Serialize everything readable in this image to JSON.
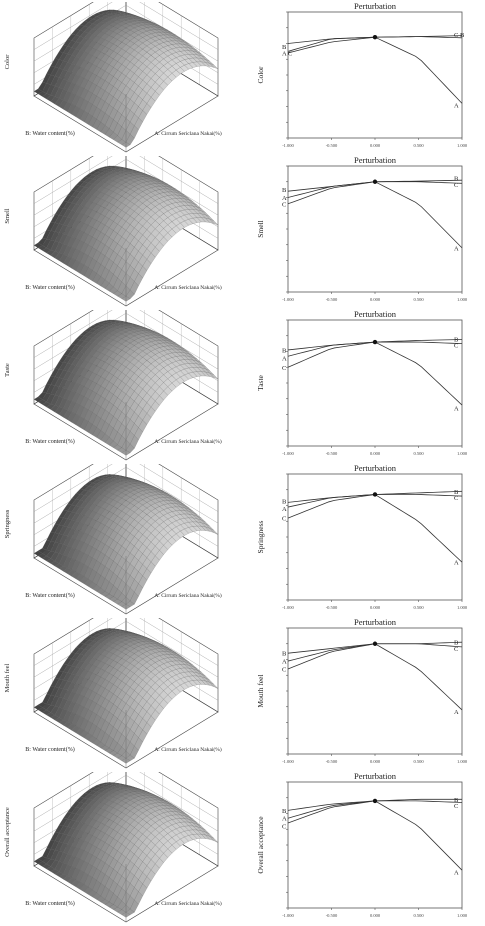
{
  "chart_data": [
    {
      "type": "surface3d",
      "zlabel": "Color",
      "xlabel": "B: Water content(%)",
      "ylabel": "A: Cirrum Sericlana Nakai(%)",
      "surface": {
        "A_vertex": 8.0,
        "B_vertex": 0.0,
        "peak": 8.2,
        "curv_A": 1.2,
        "curv_B": 0.4
      }
    },
    {
      "type": "line",
      "title": "Perturbation",
      "ylabel": "Color",
      "x": [
        -1.0,
        -0.5,
        0.0,
        0.5,
        1.0
      ],
      "xticks": [
        "-1.000",
        "-0.500",
        "0.000",
        "0.500",
        "1.000"
      ],
      "ylim": [
        5.0,
        9.0
      ],
      "series": [
        {
          "name": "A",
          "values": [
            7.75,
            8.15,
            8.2,
            7.55,
            6.1
          ]
        },
        {
          "name": "B",
          "values": [
            8.0,
            8.15,
            8.2,
            8.22,
            8.25
          ]
        },
        {
          "name": "C",
          "values": [
            7.7,
            8.05,
            8.2,
            8.22,
            8.18
          ]
        }
      ],
      "labels_left": [
        {
          "name": "B",
          "y": 7.9
        },
        {
          "name": "A C",
          "y": 7.7
        }
      ],
      "labels_right": [
        {
          "name": "C B",
          "y": 8.28
        },
        {
          "name": "A",
          "y": 6.05
        }
      ]
    },
    {
      "type": "surface3d",
      "zlabel": "Smell",
      "xlabel": "B: Water content(%)",
      "ylabel": "A: Cirrum Sericlana Nakai(%)",
      "surface": {
        "A_vertex": 8.5,
        "B_vertex": 0.0,
        "peak": 8.6,
        "curv_A": 1.2,
        "curv_B": 0.5
      }
    },
    {
      "type": "line",
      "title": "Perturbation",
      "ylabel": "Smell",
      "x": [
        -1.0,
        -0.5,
        0.0,
        0.5,
        1.0
      ],
      "xticks": [
        "-1.000",
        "-0.500",
        "0.000",
        "0.500",
        "1.000"
      ],
      "ylim": [
        5.0,
        9.0
      ],
      "series": [
        {
          "name": "A",
          "values": [
            7.8,
            8.3,
            8.5,
            7.8,
            6.4
          ]
        },
        {
          "name": "B",
          "values": [
            8.2,
            8.35,
            8.5,
            8.52,
            8.55
          ]
        },
        {
          "name": "C",
          "values": [
            8.0,
            8.35,
            8.5,
            8.5,
            8.45
          ]
        }
      ],
      "labels_left": [
        {
          "name": "B",
          "y": 8.25
        },
        {
          "name": "A",
          "y": 8.0
        },
        {
          "name": "C",
          "y": 7.8
        }
      ],
      "labels_right": [
        {
          "name": "B",
          "y": 8.62
        },
        {
          "name": "C",
          "y": 8.42
        },
        {
          "name": "A",
          "y": 6.4
        }
      ]
    },
    {
      "type": "surface3d",
      "zlabel": "Taste",
      "xlabel": "B: Water content(%)",
      "ylabel": "A: Cirrum Sericlana Nakai(%)",
      "surface": {
        "A_vertex": 8.3,
        "B_vertex": 0.0,
        "peak": 8.4,
        "curv_A": 1.2,
        "curv_B": 0.5
      }
    },
    {
      "type": "line",
      "title": "Perturbation",
      "ylabel": "Taste",
      "x": [
        -1.0,
        -0.5,
        0.0,
        0.5,
        1.0
      ],
      "xticks": [
        "-1.000",
        "-0.500",
        "0.000",
        "0.500",
        "1.000"
      ],
      "ylim": [
        5.0,
        9.0
      ],
      "series": [
        {
          "name": "A",
          "values": [
            7.5,
            8.1,
            8.3,
            7.6,
            6.3
          ]
        },
        {
          "name": "B",
          "values": [
            8.05,
            8.2,
            8.3,
            8.35,
            8.38
          ]
        },
        {
          "name": "C",
          "values": [
            7.85,
            8.2,
            8.3,
            8.3,
            8.25
          ]
        }
      ],
      "labels_left": [
        {
          "name": "B",
          "y": 8.05
        },
        {
          "name": "A",
          "y": 7.8
        },
        {
          "name": "C",
          "y": 7.5
        }
      ],
      "labels_right": [
        {
          "name": "B",
          "y": 8.4
        },
        {
          "name": "C",
          "y": 8.2
        },
        {
          "name": "A",
          "y": 6.2
        }
      ]
    },
    {
      "type": "surface3d",
      "zlabel": "Springness",
      "xlabel": "B: Water content(%)",
      "ylabel": "A: Cirrum Sericlana Nakai(%)",
      "surface": {
        "A_vertex": 8.3,
        "B_vertex": 0.0,
        "peak": 8.4,
        "curv_A": 1.3,
        "curv_B": 0.5
      }
    },
    {
      "type": "line",
      "title": "Perturbation",
      "ylabel": "Springness",
      "x": [
        -1.0,
        -0.5,
        0.0,
        0.5,
        1.0
      ],
      "xticks": [
        "-1.000",
        "-0.500",
        "0.000",
        "0.500",
        "1.000"
      ],
      "ylim": [
        5.0,
        9.0
      ],
      "series": [
        {
          "name": "A",
          "values": [
            7.6,
            8.15,
            8.35,
            7.5,
            6.2
          ]
        },
        {
          "name": "B",
          "values": [
            8.1,
            8.25,
            8.35,
            8.4,
            8.45
          ]
        },
        {
          "name": "C",
          "values": [
            7.95,
            8.25,
            8.35,
            8.35,
            8.3
          ]
        }
      ],
      "labels_left": [
        {
          "name": "B",
          "y": 8.15
        },
        {
          "name": "A",
          "y": 7.9
        },
        {
          "name": "C",
          "y": 7.6
        }
      ],
      "labels_right": [
        {
          "name": "B",
          "y": 8.45
        },
        {
          "name": "C",
          "y": 8.25
        },
        {
          "name": "A",
          "y": 6.2
        }
      ]
    },
    {
      "type": "surface3d",
      "zlabel": "Mouth feel",
      "xlabel": "B: Water content(%)",
      "ylabel": "A: Cirrum Sericlana Nakai(%)",
      "surface": {
        "A_vertex": 8.4,
        "B_vertex": 0.0,
        "peak": 8.5,
        "curv_A": 1.3,
        "curv_B": 0.5
      }
    },
    {
      "type": "line",
      "title": "Perturbation",
      "ylabel": "Mouth feel",
      "x": [
        -1.0,
        -0.5,
        0.0,
        0.5,
        1.0
      ],
      "xticks": [
        "-1.000",
        "-0.500",
        "0.000",
        "0.500",
        "1.000"
      ],
      "ylim": [
        5.0,
        9.0
      ],
      "series": [
        {
          "name": "A",
          "values": [
            7.7,
            8.25,
            8.5,
            7.7,
            6.4
          ]
        },
        {
          "name": "B",
          "values": [
            8.2,
            8.35,
            8.5,
            8.5,
            8.55
          ]
        },
        {
          "name": "C",
          "values": [
            7.95,
            8.3,
            8.5,
            8.5,
            8.4
          ]
        }
      ],
      "labels_left": [
        {
          "name": "B",
          "y": 8.2
        },
        {
          "name": "A",
          "y": 7.95
        },
        {
          "name": "C",
          "y": 7.7
        }
      ],
      "labels_right": [
        {
          "name": "B",
          "y": 8.55
        },
        {
          "name": "C",
          "y": 8.35
        },
        {
          "name": "A",
          "y": 6.35
        }
      ]
    },
    {
      "type": "surface3d",
      "zlabel": "Overall acceptance",
      "xlabel": "B: Water content(%)",
      "ylabel": "A: Cirrum Sericlana Nakai(%)",
      "surface": {
        "A_vertex": 8.3,
        "B_vertex": 0.0,
        "peak": 8.4,
        "curv_A": 1.3,
        "curv_B": 0.5
      }
    },
    {
      "type": "line",
      "title": "Perturbation",
      "ylabel": "Overall acceptance",
      "x": [
        -1.0,
        -0.5,
        0.0,
        0.5,
        1.0
      ],
      "xticks": [
        "-1.000",
        "-0.500",
        "0.000",
        "0.500",
        "1.000"
      ],
      "ylim": [
        5.0,
        9.0
      ],
      "series": [
        {
          "name": "A",
          "values": [
            7.7,
            8.2,
            8.4,
            7.6,
            6.2
          ]
        },
        {
          "name": "B",
          "values": [
            8.1,
            8.3,
            8.4,
            8.45,
            8.45
          ]
        },
        {
          "name": "C",
          "values": [
            7.85,
            8.25,
            8.4,
            8.4,
            8.35
          ]
        }
      ],
      "labels_left": [
        {
          "name": "B",
          "y": 8.1
        },
        {
          "name": "A",
          "y": 7.85
        },
        {
          "name": "C",
          "y": 7.6
        }
      ],
      "labels_right": [
        {
          "name": "B",
          "y": 8.45
        },
        {
          "name": "C",
          "y": 8.25
        },
        {
          "name": "A",
          "y": 6.15
        }
      ]
    }
  ]
}
